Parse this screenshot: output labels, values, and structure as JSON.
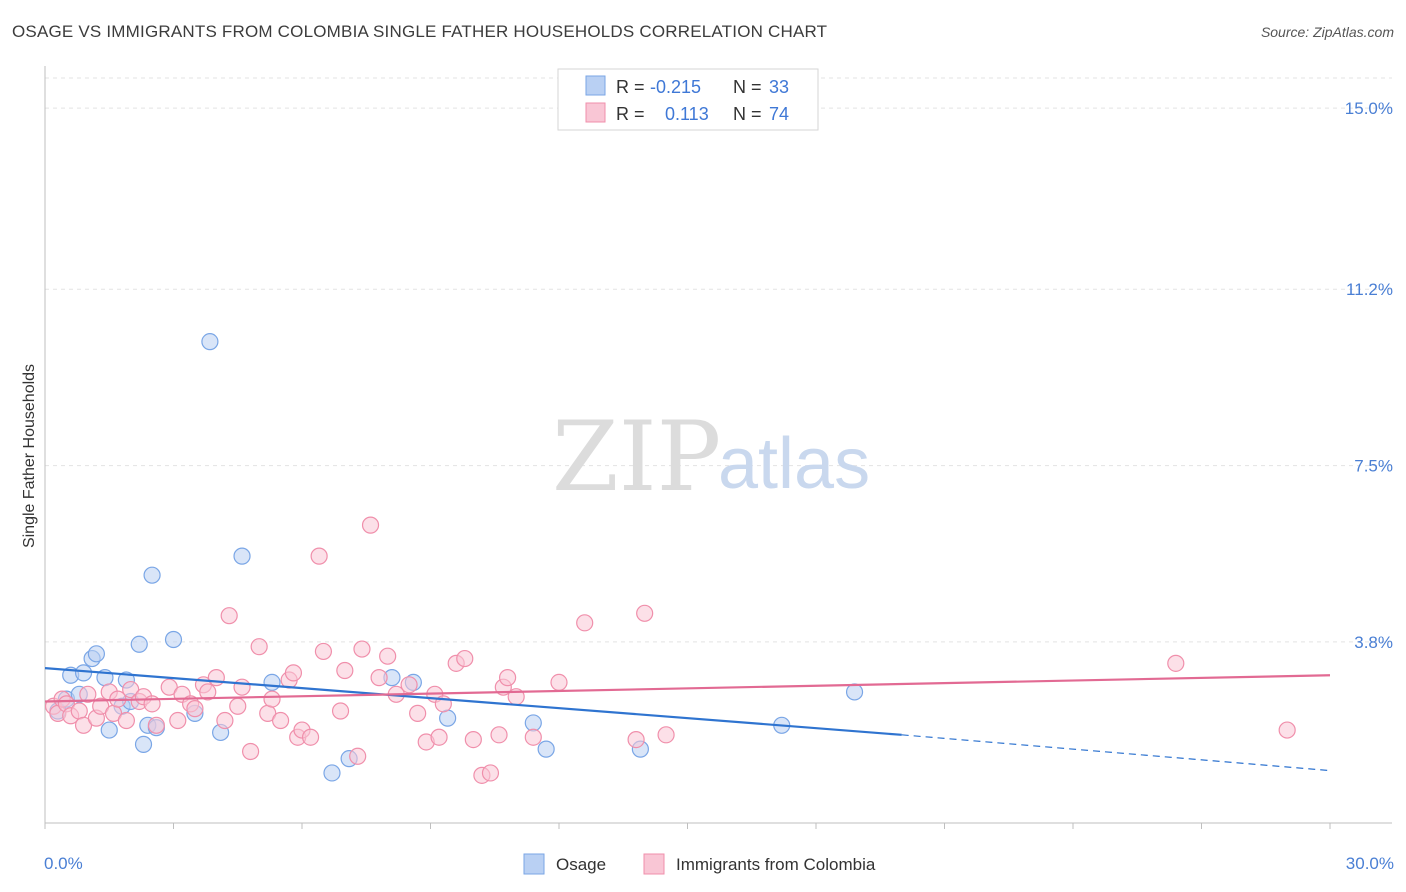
{
  "header": {
    "title": "OSAGE VS IMMIGRANTS FROM COLOMBIA SINGLE FATHER HOUSEHOLDS CORRELATION CHART",
    "source": "Source: ZipAtlas.com"
  },
  "watermark": {
    "zip": "ZIP",
    "atlas": "atlas"
  },
  "legend": {
    "rows": [
      {
        "r_label": "R =",
        "r_value": "-0.215",
        "n_label": "N =",
        "n_value": "33",
        "color": "#a9c6ef"
      },
      {
        "r_label": "R =",
        "r_value": "0.113",
        "n_label": "N =",
        "n_value": "74",
        "color": "#f6b8cb"
      }
    ]
  },
  "chart_data": {
    "type": "scatter",
    "title": "OSAGE VS IMMIGRANTS FROM COLOMBIA SINGLE FATHER HOUSEHOLDS CORRELATION CHART",
    "xlabel": "",
    "ylabel": "Single Father Households",
    "xlim": [
      0,
      30
    ],
    "ylim": [
      0,
      15.8
    ],
    "x_tick_labels": [
      "0.0%",
      "30.0%"
    ],
    "x_tick_values": [
      0,
      30
    ],
    "y_tick_labels": [
      "3.8%",
      "7.5%",
      "11.2%",
      "15.0%"
    ],
    "y_tick_values": [
      3.8,
      7.5,
      11.2,
      15.0
    ],
    "grid": true,
    "series": [
      {
        "name": "Osage",
        "color": "#7aa6e6",
        "fill": "#b9d0f3",
        "line_color": "#2f74d0",
        "trend": {
          "x0": 0,
          "y0": 3.25,
          "x1": 20,
          "y1": 1.85,
          "dashed_to_x": 30,
          "dashed_to_y": 1.1
        },
        "points": [
          [
            0.3,
            2.35
          ],
          [
            0.5,
            2.6
          ],
          [
            0.8,
            2.7
          ],
          [
            0.6,
            3.1
          ],
          [
            0.9,
            3.15
          ],
          [
            1.1,
            3.45
          ],
          [
            1.2,
            3.55
          ],
          [
            1.4,
            3.05
          ],
          [
            1.5,
            1.95
          ],
          [
            1.8,
            2.45
          ],
          [
            1.9,
            3.0
          ],
          [
            2.0,
            2.55
          ],
          [
            2.2,
            3.75
          ],
          [
            2.3,
            1.65
          ],
          [
            2.4,
            2.05
          ],
          [
            2.5,
            5.2
          ],
          [
            2.6,
            2.0
          ],
          [
            3.0,
            3.85
          ],
          [
            3.5,
            2.3
          ],
          [
            3.85,
            10.1
          ],
          [
            4.1,
            1.9
          ],
          [
            4.6,
            5.6
          ],
          [
            5.3,
            2.95
          ],
          [
            6.7,
            1.05
          ],
          [
            7.1,
            1.35
          ],
          [
            8.1,
            3.05
          ],
          [
            8.6,
            2.95
          ],
          [
            9.4,
            2.2
          ],
          [
            11.4,
            2.1
          ],
          [
            11.7,
            1.55
          ],
          [
            13.9,
            1.55
          ],
          [
            17.2,
            2.05
          ],
          [
            18.9,
            2.75
          ]
        ]
      },
      {
        "name": "Immigrants from Colombia",
        "color": "#f08fab",
        "fill": "#f9c6d5",
        "line_color": "#e26a93",
        "trend": {
          "x0": 0,
          "y0": 2.55,
          "x1": 30,
          "y1": 3.1
        },
        "points": [
          [
            0.2,
            2.45
          ],
          [
            0.3,
            2.3
          ],
          [
            0.4,
            2.6
          ],
          [
            0.5,
            2.5
          ],
          [
            0.6,
            2.25
          ],
          [
            0.8,
            2.35
          ],
          [
            0.9,
            2.05
          ],
          [
            1.0,
            2.7
          ],
          [
            1.2,
            2.2
          ],
          [
            1.3,
            2.45
          ],
          [
            1.5,
            2.75
          ],
          [
            1.6,
            2.3
          ],
          [
            1.7,
            2.6
          ],
          [
            1.9,
            2.15
          ],
          [
            2.0,
            2.8
          ],
          [
            2.2,
            2.55
          ],
          [
            2.3,
            2.65
          ],
          [
            2.5,
            2.5
          ],
          [
            2.6,
            2.05
          ],
          [
            2.9,
            2.85
          ],
          [
            3.1,
            2.15
          ],
          [
            3.2,
            2.7
          ],
          [
            3.4,
            2.5
          ],
          [
            3.5,
            2.4
          ],
          [
            3.7,
            2.9
          ],
          [
            3.8,
            2.75
          ],
          [
            4.0,
            3.05
          ],
          [
            4.2,
            2.15
          ],
          [
            4.3,
            4.35
          ],
          [
            4.5,
            2.45
          ],
          [
            4.6,
            2.85
          ],
          [
            4.8,
            1.5
          ],
          [
            5.0,
            3.7
          ],
          [
            5.2,
            2.3
          ],
          [
            5.3,
            2.6
          ],
          [
            5.5,
            2.15
          ],
          [
            5.7,
            3.0
          ],
          [
            5.8,
            3.15
          ],
          [
            5.9,
            1.8
          ],
          [
            6.0,
            1.95
          ],
          [
            6.2,
            1.8
          ],
          [
            6.4,
            5.6
          ],
          [
            6.5,
            3.6
          ],
          [
            6.9,
            2.35
          ],
          [
            7.0,
            3.2
          ],
          [
            7.3,
            1.4
          ],
          [
            7.4,
            3.65
          ],
          [
            7.6,
            6.25
          ],
          [
            7.8,
            3.05
          ],
          [
            8.0,
            3.5
          ],
          [
            8.2,
            2.7
          ],
          [
            8.5,
            2.9
          ],
          [
            8.7,
            2.3
          ],
          [
            8.9,
            1.7
          ],
          [
            9.1,
            2.7
          ],
          [
            9.3,
            2.5
          ],
          [
            9.6,
            3.35
          ],
          [
            9.8,
            3.45
          ],
          [
            10.0,
            1.75
          ],
          [
            10.2,
            1.0
          ],
          [
            10.4,
            1.05
          ],
          [
            10.6,
            1.85
          ],
          [
            10.7,
            2.85
          ],
          [
            10.8,
            3.05
          ],
          [
            11.0,
            2.65
          ],
          [
            11.4,
            1.8
          ],
          [
            12.0,
            2.95
          ],
          [
            12.6,
            4.2
          ],
          [
            13.8,
            1.75
          ],
          [
            14.0,
            4.4
          ],
          [
            14.5,
            1.85
          ],
          [
            26.4,
            3.35
          ],
          [
            29.0,
            1.95
          ],
          [
            9.2,
            1.8
          ]
        ]
      }
    ]
  },
  "bottom_legend": [
    {
      "label": "Osage"
    },
    {
      "label": "Immigrants from Colombia"
    }
  ]
}
